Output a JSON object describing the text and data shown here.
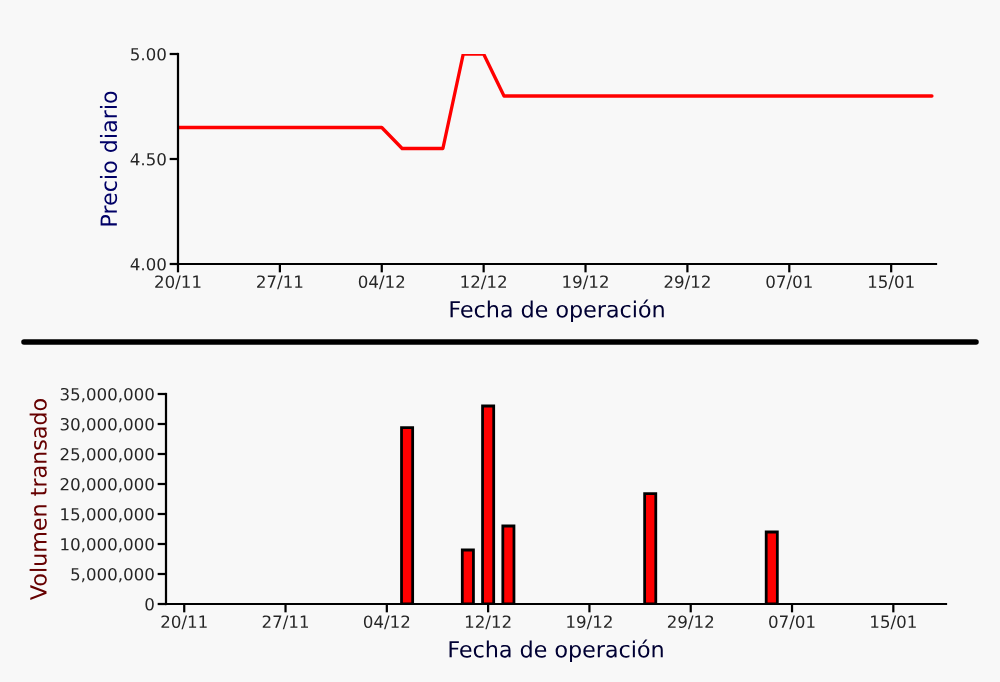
{
  "chart_data": [
    {
      "type": "line",
      "xlabel": "Fecha de operación",
      "ylabel": "Precio diario",
      "categories": [
        "20/11",
        null,
        null,
        null,
        null,
        "27/11",
        null,
        null,
        null,
        null,
        "04/12",
        null,
        null,
        null,
        null,
        "12/12",
        null,
        null,
        null,
        null,
        "19/12",
        null,
        null,
        null,
        null,
        "29/12",
        null,
        null,
        null,
        null,
        "07/01",
        null,
        null,
        null,
        null,
        "15/01",
        null,
        null
      ],
      "series": [
        {
          "color": "#ff0000",
          "values": [
            4.65,
            4.65,
            4.65,
            4.65,
            4.65,
            4.65,
            4.65,
            4.65,
            4.65,
            4.65,
            4.65,
            4.55,
            4.55,
            4.55,
            5.0,
            5.0,
            4.8,
            4.8,
            4.8,
            4.8,
            4.8,
            4.8,
            4.8,
            4.8,
            4.8,
            4.8,
            4.8,
            4.8,
            4.8,
            4.8,
            4.8,
            4.8,
            4.8,
            4.8,
            4.8,
            4.8,
            4.8,
            4.8
          ]
        }
      ],
      "ylim": [
        4.0,
        5.0
      ],
      "yticks": [
        {
          "value": 4.0,
          "label": "4.00"
        },
        {
          "value": 4.5,
          "label": "4.50"
        },
        {
          "value": 5.0,
          "label": "5.00"
        }
      ],
      "grid": false,
      "legend": false
    },
    {
      "type": "bar",
      "xlabel": "Fecha de operación",
      "ylabel": "Volumen transado",
      "categories": [
        "20/11",
        null,
        null,
        null,
        null,
        "27/11",
        null,
        null,
        null,
        null,
        "04/12",
        null,
        null,
        null,
        null,
        "12/12",
        null,
        null,
        null,
        null,
        "19/12",
        null,
        null,
        null,
        null,
        "29/12",
        null,
        null,
        null,
        null,
        "07/01",
        null,
        null,
        null,
        null,
        "15/01",
        null,
        null
      ],
      "series": [
        {
          "color": "#ff0000",
          "values": [
            null,
            null,
            null,
            null,
            null,
            null,
            null,
            null,
            null,
            null,
            null,
            29400000,
            null,
            null,
            9000000,
            33000000,
            13000000,
            null,
            null,
            null,
            null,
            null,
            null,
            18400000,
            null,
            null,
            null,
            null,
            null,
            12000000,
            null,
            null,
            null,
            null,
            null,
            null,
            null,
            null
          ]
        }
      ],
      "ylim": [
        0,
        35000000
      ],
      "yticks": [
        {
          "value": 0,
          "label": "0"
        },
        {
          "value": 5000000,
          "label": "5,000,000"
        },
        {
          "value": 10000000,
          "label": "10,000,000"
        },
        {
          "value": 15000000,
          "label": "15,000,000"
        },
        {
          "value": 20000000,
          "label": "20,000,000"
        },
        {
          "value": 25000000,
          "label": "25,000,000"
        },
        {
          "value": 30000000,
          "label": "30,000,000"
        },
        {
          "value": 35000000,
          "label": "35,000,000"
        }
      ],
      "grid": false,
      "legend": false
    }
  ]
}
